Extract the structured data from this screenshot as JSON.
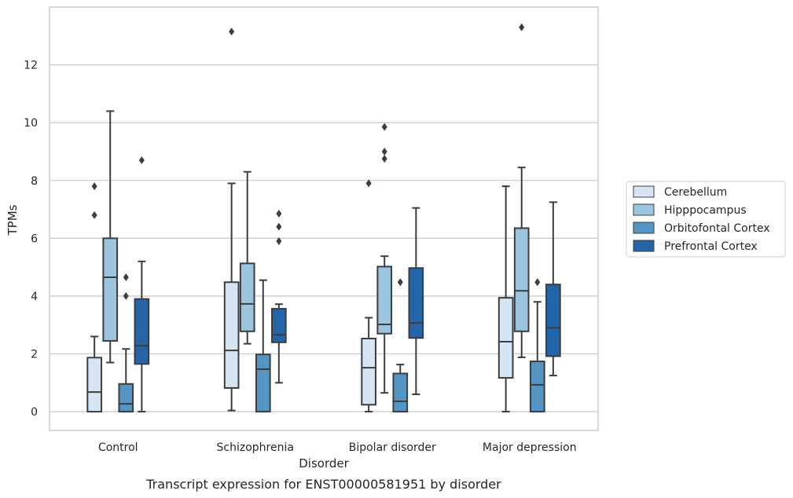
{
  "chart_data": {
    "type": "box",
    "xlabel": "Disorder",
    "ylabel": "TPMs",
    "caption": "Transcript expression for ENST00000581951 by disorder",
    "ylim": [
      -0.65,
      14.0
    ],
    "yticks": [
      0,
      2,
      4,
      6,
      8,
      10,
      12
    ],
    "grid": true,
    "legend_position": "right",
    "categories": [
      "Control",
      "Schizophrenia",
      "Bipolar disorder",
      "Major depression"
    ],
    "series": [
      {
        "name": "Cerebellum",
        "color": "#d6e5f4",
        "boxes": [
          {
            "q1": 0.0,
            "median": 0.68,
            "q3": 1.87,
            "whisker_low": 0.0,
            "whisker_high": 2.6,
            "outliers": [
              6.8,
              7.8
            ]
          },
          {
            "q1": 0.82,
            "median": 2.12,
            "q3": 4.48,
            "whisker_low": 0.04,
            "whisker_high": 7.9,
            "outliers": [
              13.15
            ]
          },
          {
            "q1": 0.24,
            "median": 1.52,
            "q3": 2.53,
            "whisker_low": 0.0,
            "whisker_high": 3.25,
            "outliers": [
              7.9
            ]
          },
          {
            "q1": 1.17,
            "median": 2.42,
            "q3": 3.94,
            "whisker_low": 0.0,
            "whisker_high": 7.8,
            "outliers": []
          }
        ]
      },
      {
        "name": "Hipppocampus",
        "color": "#9bc4de",
        "boxes": [
          {
            "q1": 2.45,
            "median": 4.65,
            "q3": 6.0,
            "whisker_low": 1.7,
            "whisker_high": 10.4,
            "outliers": []
          },
          {
            "q1": 2.78,
            "median": 3.73,
            "q3": 5.13,
            "whisker_low": 2.35,
            "whisker_high": 8.3,
            "outliers": []
          },
          {
            "q1": 2.7,
            "median": 3.02,
            "q3": 5.02,
            "whisker_low": 0.65,
            "whisker_high": 5.38,
            "outliers": [
              8.75,
              9.0,
              9.85
            ]
          },
          {
            "q1": 2.78,
            "median": 4.18,
            "q3": 6.35,
            "whisker_low": 1.88,
            "whisker_high": 8.45,
            "outliers": [
              13.3
            ]
          }
        ]
      },
      {
        "name": "Orbitofontal Cortex",
        "color": "#5495c3",
        "boxes": [
          {
            "q1": 0.0,
            "median": 0.27,
            "q3": 0.96,
            "whisker_low": 0.0,
            "whisker_high": 2.17,
            "outliers": [
              4.0,
              4.65
            ]
          },
          {
            "q1": 0.0,
            "median": 1.47,
            "q3": 1.98,
            "whisker_low": 0.0,
            "whisker_high": 4.55,
            "outliers": []
          },
          {
            "q1": 0.0,
            "median": 0.36,
            "q3": 1.32,
            "whisker_low": 0.0,
            "whisker_high": 1.63,
            "outliers": [
              4.48
            ]
          },
          {
            "q1": 0.0,
            "median": 0.93,
            "q3": 1.74,
            "whisker_low": 0.0,
            "whisker_high": 3.8,
            "outliers": [
              4.48
            ]
          }
        ]
      },
      {
        "name": "Prefrontal Cortex",
        "color": "#2465a8",
        "boxes": [
          {
            "q1": 1.65,
            "median": 2.28,
            "q3": 3.9,
            "whisker_low": 0.0,
            "whisker_high": 5.2,
            "outliers": [
              8.7
            ]
          },
          {
            "q1": 2.4,
            "median": 2.66,
            "q3": 3.56,
            "whisker_low": 1.0,
            "whisker_high": 3.72,
            "outliers": [
              5.9,
              6.4,
              6.85
            ]
          },
          {
            "q1": 2.55,
            "median": 3.07,
            "q3": 4.97,
            "whisker_low": 0.6,
            "whisker_high": 7.05,
            "outliers": []
          },
          {
            "q1": 1.92,
            "median": 2.9,
            "q3": 4.4,
            "whisker_low": 1.25,
            "whisker_high": 7.25,
            "outliers": []
          }
        ]
      }
    ]
  }
}
